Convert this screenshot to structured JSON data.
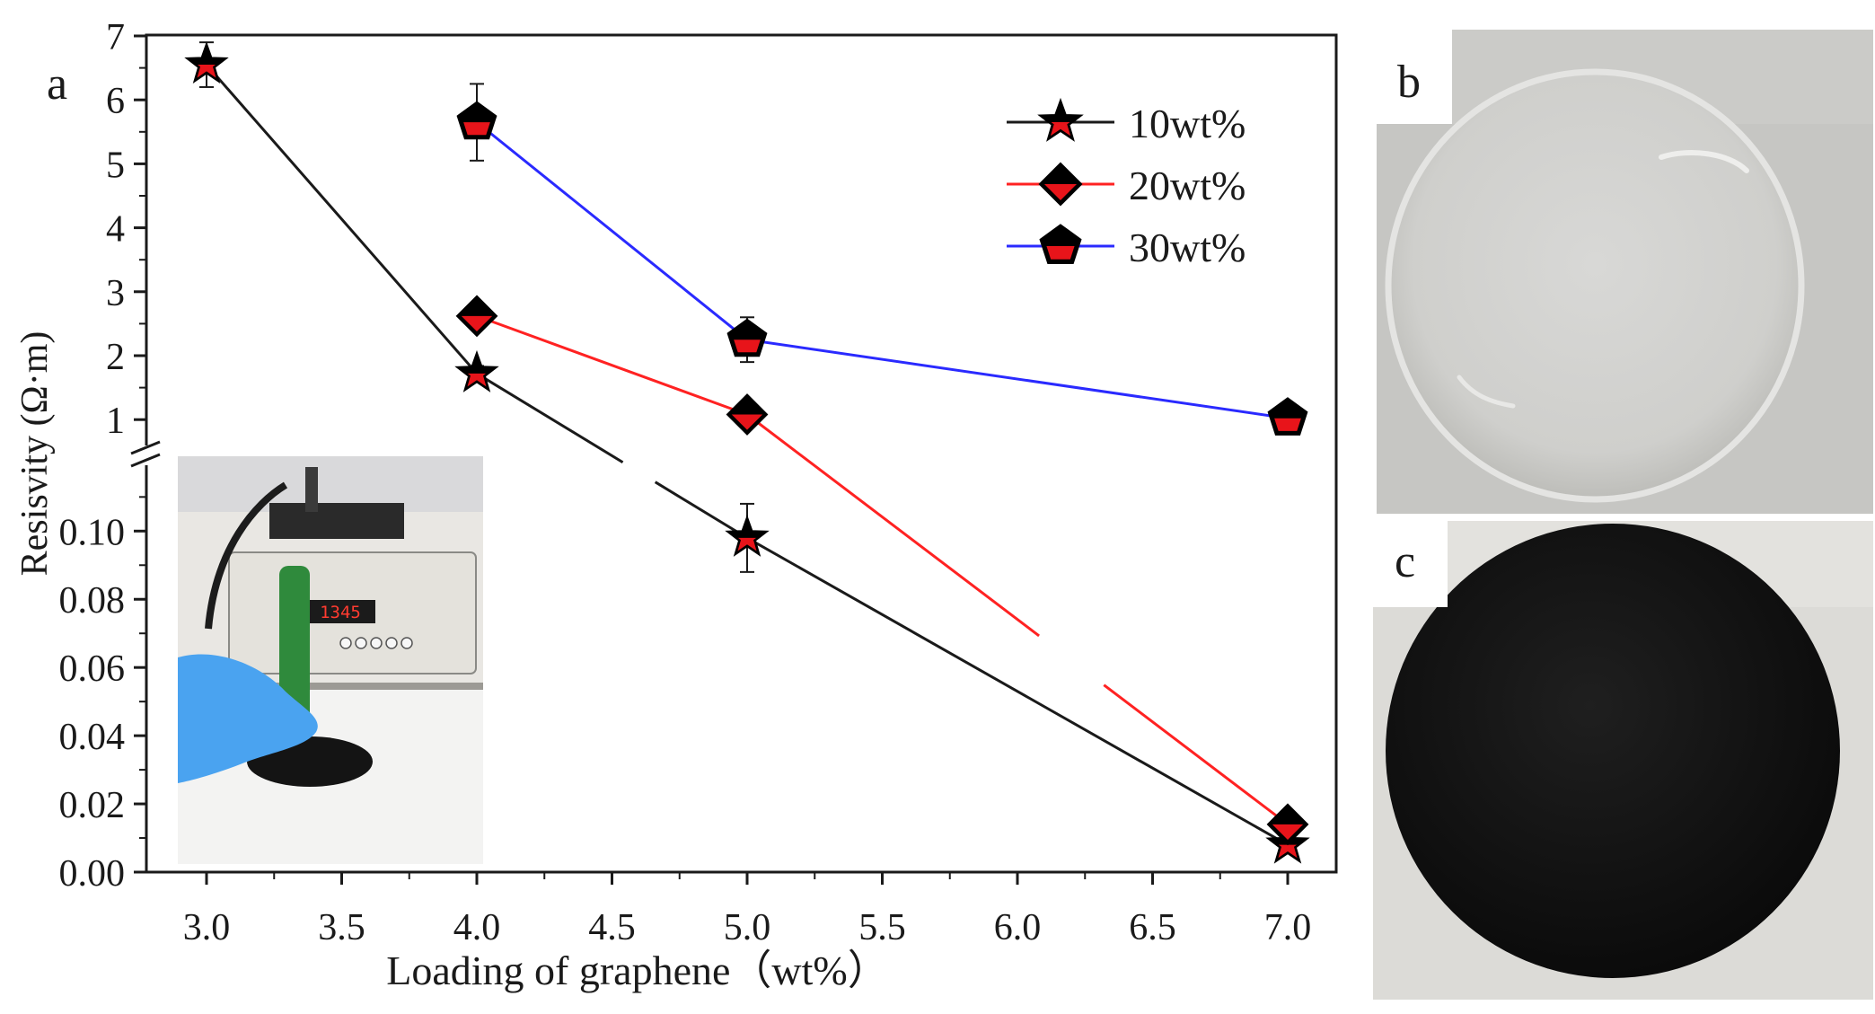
{
  "chart_data": {
    "type": "line",
    "panel_labels": {
      "a": "a",
      "b": "b",
      "c": "c"
    },
    "xlabel": "Loading of graphene（wt%）",
    "ylabel": "Resisvity (Ω·m)",
    "x_ticks": [
      "3.0",
      "3.5",
      "4.0",
      "4.5",
      "5.0",
      "5.5",
      "6.0",
      "6.5",
      "7.0"
    ],
    "xlim": [
      2.8,
      7.2
    ],
    "y_upper": {
      "ticks": [
        "1",
        "2",
        "3",
        "4",
        "5",
        "6",
        "7"
      ],
      "ylim": [
        0.4,
        7.0
      ]
    },
    "y_lower": {
      "ticks": [
        "0.00",
        "0.02",
        "0.04",
        "0.06",
        "0.08",
        "0.10"
      ],
      "ylim": [
        0.0,
        0.12
      ]
    },
    "axis_break": true,
    "legend_position": "top-right",
    "series": [
      {
        "name": "10wt%",
        "marker": "star",
        "line_color": "#1a1a1a",
        "points": [
          {
            "x": 3.0,
            "y": 6.55,
            "err": 0.35
          },
          {
            "x": 4.0,
            "y": 1.72,
            "err": 0.12
          },
          {
            "x": 5.0,
            "y": 0.098,
            "err": 0.01
          },
          {
            "x": 7.0,
            "y": 0.008,
            "err": 0.0
          }
        ]
      },
      {
        "name": "20wt%",
        "marker": "diamond",
        "line_color": "#ff2222",
        "points": [
          {
            "x": 4.0,
            "y": 2.62,
            "err": 0.1
          },
          {
            "x": 5.0,
            "y": 1.08,
            "err": 0.1
          },
          {
            "x": 7.0,
            "y": 0.014,
            "err": 0.0
          }
        ]
      },
      {
        "name": "30wt%",
        "marker": "pentagon",
        "line_color": "#2a2aff",
        "points": [
          {
            "x": 4.0,
            "y": 5.65,
            "err": 0.6
          },
          {
            "x": 5.0,
            "y": 2.25,
            "err": 0.35
          },
          {
            "x": 7.0,
            "y": 1.02,
            "err": 0.05
          }
        ]
      }
    ],
    "inset_meter_reading": "1345",
    "colors": {
      "marker_fill": "#e8141a",
      "marker_edge": "#000000",
      "black_disc": "#151515",
      "clear_film_bg": "#c9c9c6"
    }
  }
}
